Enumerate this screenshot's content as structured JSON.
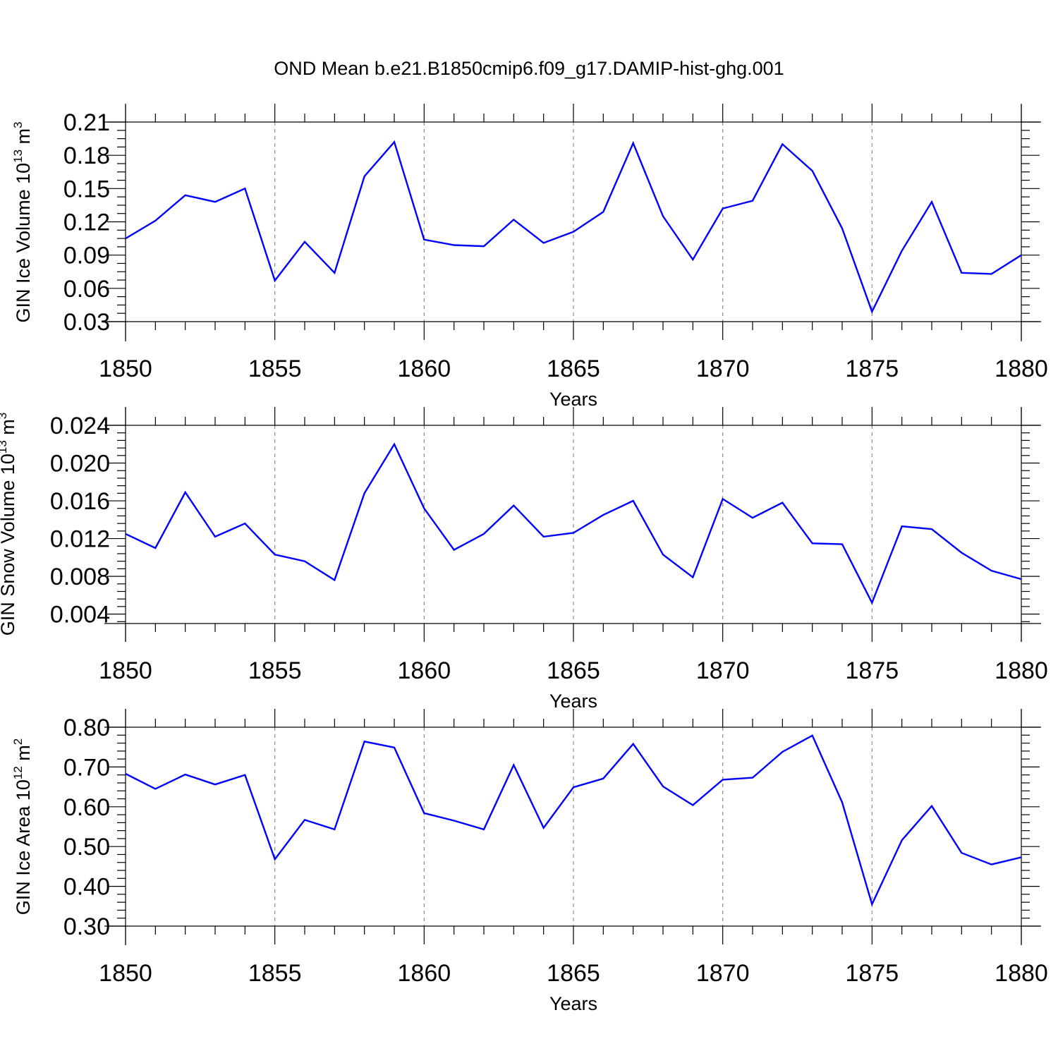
{
  "figure": {
    "title": "OND Mean b.e21.B1850cmip6.f09_g17.DAMIP-hist-ghg.001"
  },
  "chart_data": [
    {
      "type": "line",
      "xlabel": "Years",
      "ylabel": {
        "text": "GIN Ice Volume 10",
        "exp": "13",
        "unit": " m",
        "unit_exp": "3"
      },
      "xlim": [
        1850,
        1880
      ],
      "ylim": [
        0.03,
        0.21
      ],
      "xticks": [
        "1850",
        "1855",
        "1860",
        "1865",
        "1870",
        "1875",
        "1880"
      ],
      "yticks": [
        "0.03",
        "0.06",
        "0.09",
        "0.12",
        "0.15",
        "0.18",
        "0.21"
      ],
      "grid": "vertical dashed at major x ticks",
      "line_color": "#0000ff",
      "x": [
        1850,
        1851,
        1852,
        1853,
        1854,
        1855,
        1856,
        1857,
        1858,
        1859,
        1860,
        1861,
        1862,
        1863,
        1864,
        1865,
        1866,
        1867,
        1868,
        1869,
        1870,
        1871,
        1872,
        1873,
        1874,
        1875,
        1876,
        1877,
        1878,
        1879,
        1880
      ],
      "values": [
        0.105,
        0.121,
        0.144,
        0.138,
        0.15,
        0.067,
        0.102,
        0.074,
        0.161,
        0.192,
        0.104,
        0.099,
        0.098,
        0.122,
        0.101,
        0.111,
        0.129,
        0.191,
        0.125,
        0.086,
        0.132,
        0.139,
        0.19,
        0.166,
        0.114,
        0.039,
        0.094,
        0.138,
        0.074,
        0.073,
        0.09
      ]
    },
    {
      "type": "line",
      "xlabel": "Years",
      "ylabel": {
        "text": "GIN Snow Volume 10",
        "exp": "13",
        "unit": " m",
        "unit_exp": "3"
      },
      "xlim": [
        1850,
        1880
      ],
      "ylim": [
        0.003,
        0.024
      ],
      "xticks": [
        "1850",
        "1855",
        "1860",
        "1865",
        "1870",
        "1875",
        "1880"
      ],
      "yticks": [
        "0.004",
        "0.008",
        "0.012",
        "0.016",
        "0.020",
        "0.024"
      ],
      "grid": "vertical dashed at major x ticks",
      "line_color": "#0000ff",
      "x": [
        1850,
        1851,
        1852,
        1853,
        1854,
        1855,
        1856,
        1857,
        1858,
        1859,
        1860,
        1861,
        1862,
        1863,
        1864,
        1865,
        1866,
        1867,
        1868,
        1869,
        1870,
        1871,
        1872,
        1873,
        1874,
        1875,
        1876,
        1877,
        1878,
        1879,
        1880
      ],
      "values": [
        0.0125,
        0.011,
        0.0169,
        0.0122,
        0.0136,
        0.0103,
        0.0096,
        0.0076,
        0.0168,
        0.022,
        0.0152,
        0.0108,
        0.0125,
        0.0155,
        0.0122,
        0.0126,
        0.0145,
        0.016,
        0.0103,
        0.0079,
        0.0162,
        0.0142,
        0.0158,
        0.0115,
        0.0114,
        0.0052,
        0.0133,
        0.013,
        0.0105,
        0.0086,
        0.0077
      ]
    },
    {
      "type": "line",
      "xlabel": "Years",
      "ylabel": {
        "text": "GIN Ice Area 10",
        "exp": "12",
        "unit": " m",
        "unit_exp": "2"
      },
      "xlim": [
        1850,
        1880
      ],
      "ylim": [
        0.3,
        0.8
      ],
      "xticks": [
        "1850",
        "1855",
        "1860",
        "1865",
        "1870",
        "1875",
        "1880"
      ],
      "yticks": [
        "0.30",
        "0.40",
        "0.50",
        "0.60",
        "0.70",
        "0.80"
      ],
      "grid": "vertical dashed at major x ticks",
      "line_color": "#0000ff",
      "x": [
        1850,
        1851,
        1852,
        1853,
        1854,
        1855,
        1856,
        1857,
        1858,
        1859,
        1860,
        1861,
        1862,
        1863,
        1864,
        1865,
        1866,
        1867,
        1868,
        1869,
        1870,
        1871,
        1872,
        1873,
        1874,
        1875,
        1876,
        1877,
        1878,
        1879,
        1880
      ],
      "values": [
        0.683,
        0.645,
        0.681,
        0.656,
        0.68,
        0.468,
        0.567,
        0.543,
        0.764,
        0.749,
        0.584,
        0.565,
        0.543,
        0.705,
        0.547,
        0.649,
        0.671,
        0.758,
        0.651,
        0.604,
        0.668,
        0.673,
        0.738,
        0.779,
        0.611,
        0.355,
        0.516,
        0.602,
        0.484,
        0.455,
        0.473
      ]
    }
  ]
}
